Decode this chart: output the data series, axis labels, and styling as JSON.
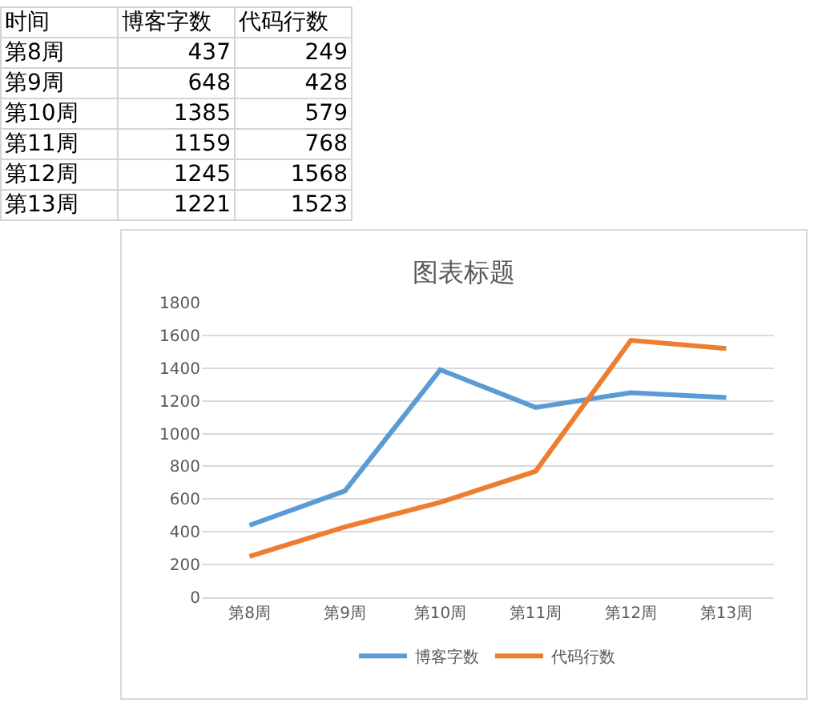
{
  "chart_data": [
    {
      "type": "other",
      "annotations": [
        "时间"
      ],
      "categories": [
        "第8周",
        "第9周",
        "第10周",
        "第11周",
        "第12周",
        "第13周"
      ],
      "series": [
        {
          "name": "博客字数",
          "values": [
            437,
            648,
            1385,
            1159,
            1245,
            1221
          ]
        },
        {
          "name": "代码行数",
          "values": [
            249,
            428,
            579,
            768,
            1568,
            1523
          ]
        }
      ],
      "data_labels": true
    },
    {
      "type": "line",
      "title": "图表标题",
      "categories": [
        "第8周",
        "第9周",
        "第10周",
        "第11周",
        "第12周",
        "第13周"
      ],
      "series": [
        {
          "name": "博客字数",
          "color": "#5b9bd5",
          "values": [
            440,
            650,
            1390,
            1160,
            1250,
            1220
          ]
        },
        {
          "name": "代码行数",
          "color": "#ed7d31",
          "values": [
            250,
            430,
            580,
            770,
            1570,
            1520
          ]
        }
      ],
      "ylim": [
        0,
        1800
      ],
      "yticks": [
        0,
        200,
        400,
        600,
        800,
        1000,
        1200,
        1400,
        1600,
        1800
      ],
      "grid": "y",
      "legend": "bottom",
      "marker": "none",
      "line_style": "solid"
    }
  ]
}
